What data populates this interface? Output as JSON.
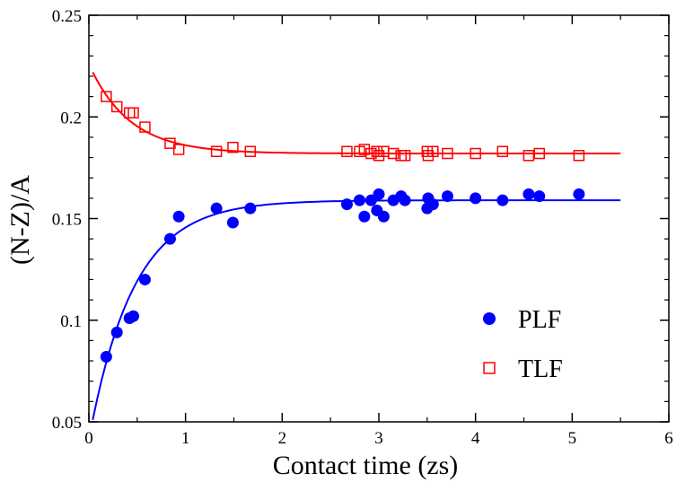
{
  "chart_data": {
    "type": "scatter",
    "title": "",
    "xlabel": "Contact time (zs)",
    "ylabel": "(N-Z)/A",
    "xlim": [
      0,
      6
    ],
    "ylim": [
      0.05,
      0.25
    ],
    "xticks": [
      0,
      1,
      2,
      3,
      4,
      5,
      6
    ],
    "xtick_labels": [
      "0",
      "1",
      "2",
      "3",
      "4",
      "5",
      "6"
    ],
    "yticks": [
      0.05,
      0.1,
      0.15,
      0.2,
      0.25
    ],
    "ytick_labels": [
      "0.05",
      "0.1",
      "0.15",
      "0.2",
      "0.25"
    ],
    "grid": false,
    "legend_position": "bottom-right",
    "series": [
      {
        "name": "PLF",
        "marker": "filled-circle",
        "color": "#0000ff",
        "points": [
          [
            0.18,
            0.082
          ],
          [
            0.29,
            0.094
          ],
          [
            0.42,
            0.101
          ],
          [
            0.46,
            0.102
          ],
          [
            0.58,
            0.12
          ],
          [
            0.84,
            0.14
          ],
          [
            0.93,
            0.151
          ],
          [
            1.32,
            0.155
          ],
          [
            1.49,
            0.148
          ],
          [
            1.67,
            0.155
          ],
          [
            2.67,
            0.157
          ],
          [
            2.8,
            0.159
          ],
          [
            2.85,
            0.151
          ],
          [
            2.92,
            0.159
          ],
          [
            2.98,
            0.154
          ],
          [
            3.0,
            0.162
          ],
          [
            3.05,
            0.151
          ],
          [
            3.15,
            0.159
          ],
          [
            3.23,
            0.161
          ],
          [
            3.27,
            0.159
          ],
          [
            3.5,
            0.155
          ],
          [
            3.51,
            0.16
          ],
          [
            3.56,
            0.157
          ],
          [
            3.71,
            0.161
          ],
          [
            4.0,
            0.16
          ],
          [
            4.28,
            0.159
          ],
          [
            4.55,
            0.162
          ],
          [
            4.66,
            0.161
          ],
          [
            5.07,
            0.162
          ]
        ],
        "fit": {
          "model": "saturating-exponential",
          "x_range": [
            0.04,
            5.5
          ],
          "y0": 0.051,
          "y_inf": 0.159,
          "tau": 0.46
        }
      },
      {
        "name": "TLF",
        "marker": "open-square",
        "color": "#ff0000",
        "points": [
          [
            0.18,
            0.21
          ],
          [
            0.29,
            0.205
          ],
          [
            0.42,
            0.202
          ],
          [
            0.46,
            0.202
          ],
          [
            0.58,
            0.195
          ],
          [
            0.84,
            0.187
          ],
          [
            0.93,
            0.184
          ],
          [
            1.32,
            0.183
          ],
          [
            1.49,
            0.185
          ],
          [
            1.67,
            0.183
          ],
          [
            2.67,
            0.183
          ],
          [
            2.8,
            0.183
          ],
          [
            2.85,
            0.184
          ],
          [
            2.92,
            0.182
          ],
          [
            2.98,
            0.183
          ],
          [
            3.0,
            0.181
          ],
          [
            3.05,
            0.183
          ],
          [
            3.15,
            0.182
          ],
          [
            3.23,
            0.181
          ],
          [
            3.27,
            0.181
          ],
          [
            3.5,
            0.183
          ],
          [
            3.51,
            0.181
          ],
          [
            3.56,
            0.183
          ],
          [
            3.71,
            0.182
          ],
          [
            4.0,
            0.182
          ],
          [
            4.28,
            0.183
          ],
          [
            4.55,
            0.181
          ],
          [
            4.66,
            0.182
          ],
          [
            5.07,
            0.181
          ]
        ],
        "fit": {
          "model": "saturating-exponential",
          "x_range": [
            0.04,
            5.5
          ],
          "y0": 0.222,
          "y_inf": 0.182,
          "tau": 0.42
        }
      }
    ]
  }
}
